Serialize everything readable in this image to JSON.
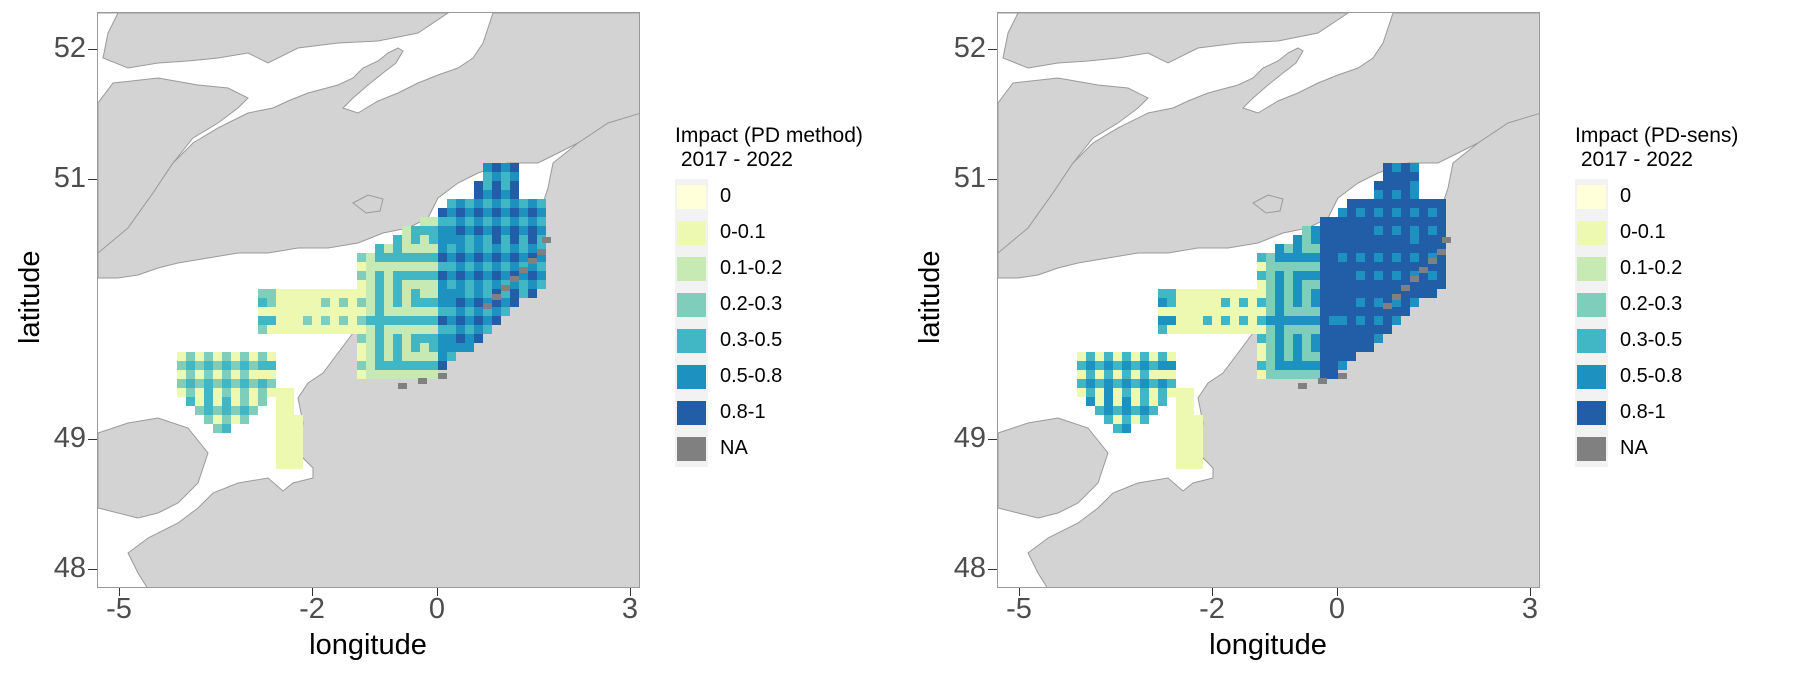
{
  "maps": [
    {
      "id": "pd-method",
      "legend_title_line1": "Impact (PD method)",
      "legend_title_line2": " 2017 - 2022",
      "variant": "method"
    },
    {
      "id": "pd-sens",
      "legend_title_line1": "Impact (PD-sens)",
      "legend_title_line2": " 2017 - 2022",
      "variant": "sens"
    }
  ],
  "axes": {
    "x_title": "longitude",
    "y_title": "latitude",
    "x_ticks": [
      "-5",
      "-2",
      "0",
      "3"
    ],
    "y_ticks": [
      "52",
      "51",
      "49",
      "48"
    ]
  },
  "legend": {
    "classes": [
      {
        "label": "0",
        "color": "#ffffd9"
      },
      {
        "label": "0-0.1",
        "color": "#edf8b1"
      },
      {
        "label": "0.1-0.2",
        "color": "#c7e9b4"
      },
      {
        "label": "0.2-0.3",
        "color": "#7fcdbb"
      },
      {
        "label": "0.3-0.5",
        "color": "#41b6c4"
      },
      {
        "label": "0.5-0.8",
        "color": "#1d91c0"
      },
      {
        "label": "0.8-1",
        "color": "#225ea8"
      },
      {
        "label": "NA",
        "color": "#808080"
      }
    ]
  },
  "colors": {
    "land": "#d3d3d3",
    "coast": "#9a9a9a",
    "sea": "#ffffff",
    "na": "#808080"
  }
}
